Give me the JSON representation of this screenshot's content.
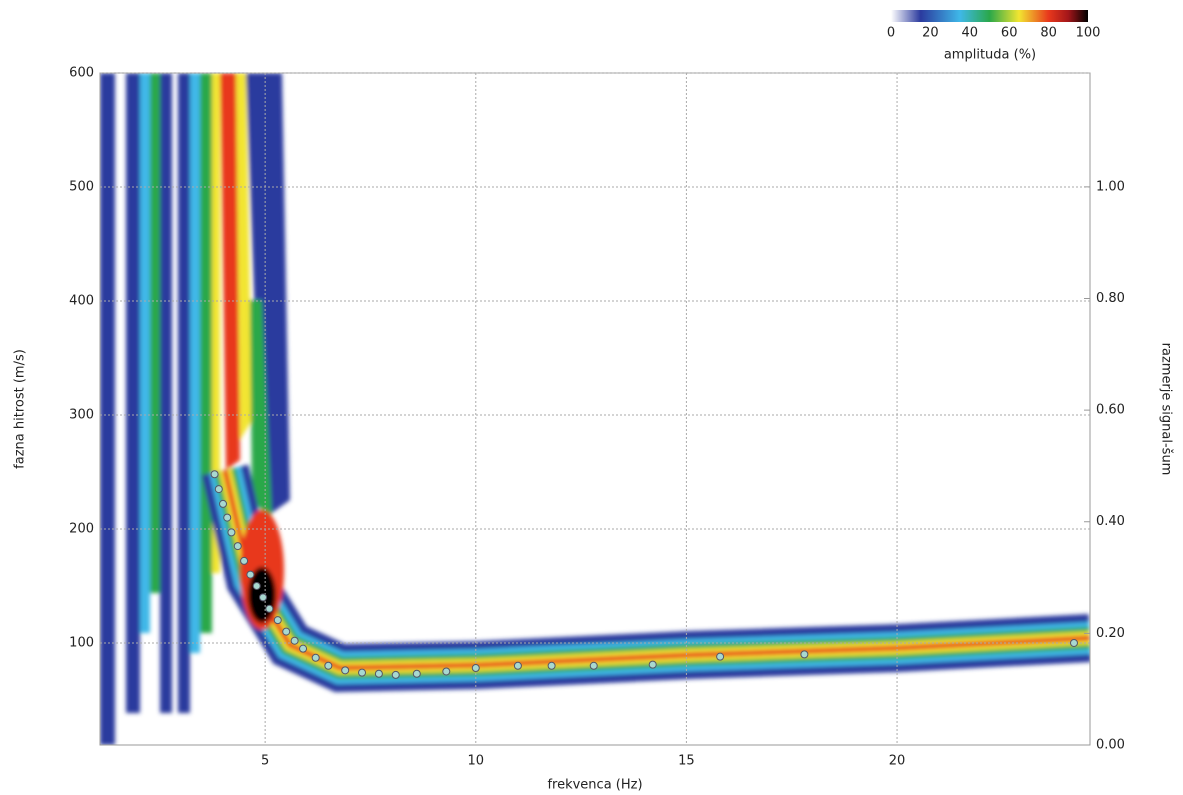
{
  "chart_data": {
    "type": "dispersion",
    "title_colorbar": "amplituda (%)",
    "colorbar_lim": [
      0,
      100
    ],
    "colorbar_ticks": [
      0,
      20,
      40,
      60,
      80,
      100
    ],
    "xlabel": "frekvenca (Hz)",
    "ylabel": "fazna hitrost (m/s)",
    "y2label": "razmerje signal-šum",
    "xlim": [
      1.08,
      24.58
    ],
    "xticks": [
      5,
      10,
      15,
      20
    ],
    "ylim": [
      10.5,
      600
    ],
    "yticks": [
      100,
      200,
      300,
      400,
      500,
      600
    ],
    "y2lim": [
      0,
      1.204
    ],
    "y2ticks": [
      {
        "value": 0,
        "label": "0.00"
      },
      {
        "value": 0.2,
        "label": "0.20"
      },
      {
        "value": 0.4,
        "label": "0.40"
      },
      {
        "value": 0.6,
        "label": "0.60"
      },
      {
        "value": 0.8,
        "label": "0.80"
      },
      {
        "value": 1,
        "label": "1.00"
      }
    ],
    "grid": true,
    "points": {
      "color": "#a8d8d0",
      "x": [
        3.8,
        3.9,
        4.0,
        4.1,
        4.2,
        4.35,
        4.5,
        4.65,
        4.8,
        4.95,
        5.1,
        5.3,
        5.5,
        5.7,
        5.9,
        6.2,
        6.5,
        6.9,
        7.3,
        7.7,
        8.1,
        8.6,
        9.3,
        10.0,
        11.0,
        11.8,
        12.8,
        14.2,
        15.8,
        17.8,
        24.2
      ],
      "y": [
        248,
        235,
        222,
        210,
        197,
        185,
        172,
        160,
        150,
        140,
        130,
        120,
        110,
        102,
        95,
        87,
        80,
        76,
        74,
        73,
        72,
        73,
        75,
        78,
        80,
        80,
        80,
        81,
        88,
        90,
        100
      ]
    }
  }
}
